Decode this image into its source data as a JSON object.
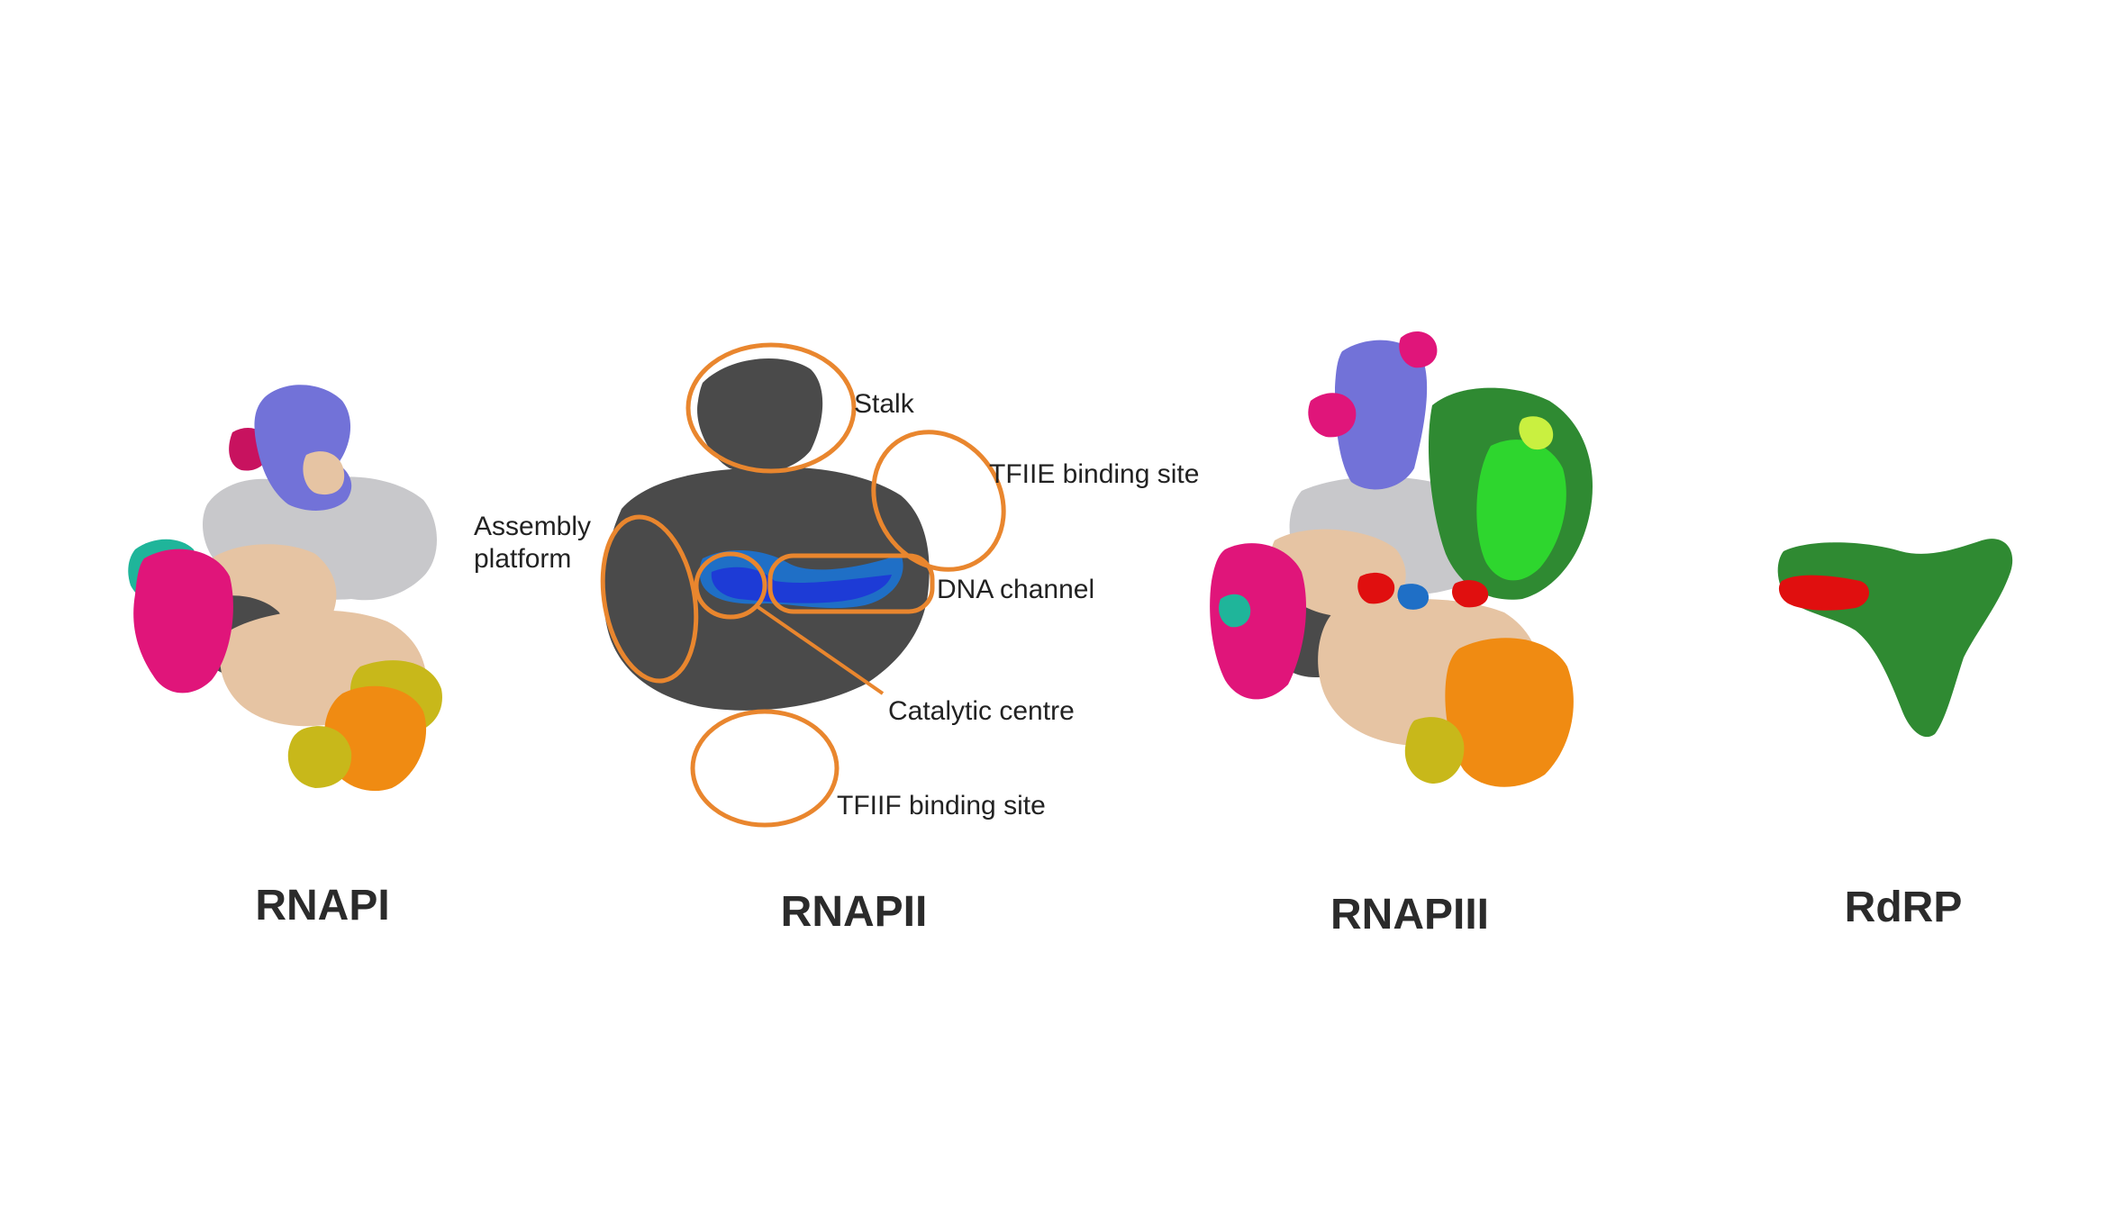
{
  "colors": {
    "highlight": "#e9862e",
    "dark_grey": "#4a4a4a",
    "light_grey": "#c8c8cb",
    "wheat": "#e6c4a3",
    "slate_blue": "#7272d8",
    "pink": "#e0157a",
    "orange": "#f08b12",
    "yellow": "#c8b81a",
    "teal": "#1fb59a",
    "green": "#2f8a32",
    "bright_green": "#2ed62e",
    "red": "#e00f0f",
    "blue": "#1d3bd6",
    "marine": "#1f6fc6"
  },
  "panels": {
    "rnapi": {
      "title": "RNAPI"
    },
    "rnapii": {
      "title": "RNAPII"
    },
    "rnapiii": {
      "title": "RNAPIII"
    },
    "rdrp": {
      "title": "RdRP"
    }
  },
  "annotations": {
    "stalk": "Stalk",
    "tfiie": "TFIIE binding site",
    "assembly_line1": "Assembly",
    "assembly_line2": "platform",
    "dna_channel": "DNA channel",
    "catalytic": "Catalytic centre",
    "tfiif": "TFIIF binding site"
  }
}
